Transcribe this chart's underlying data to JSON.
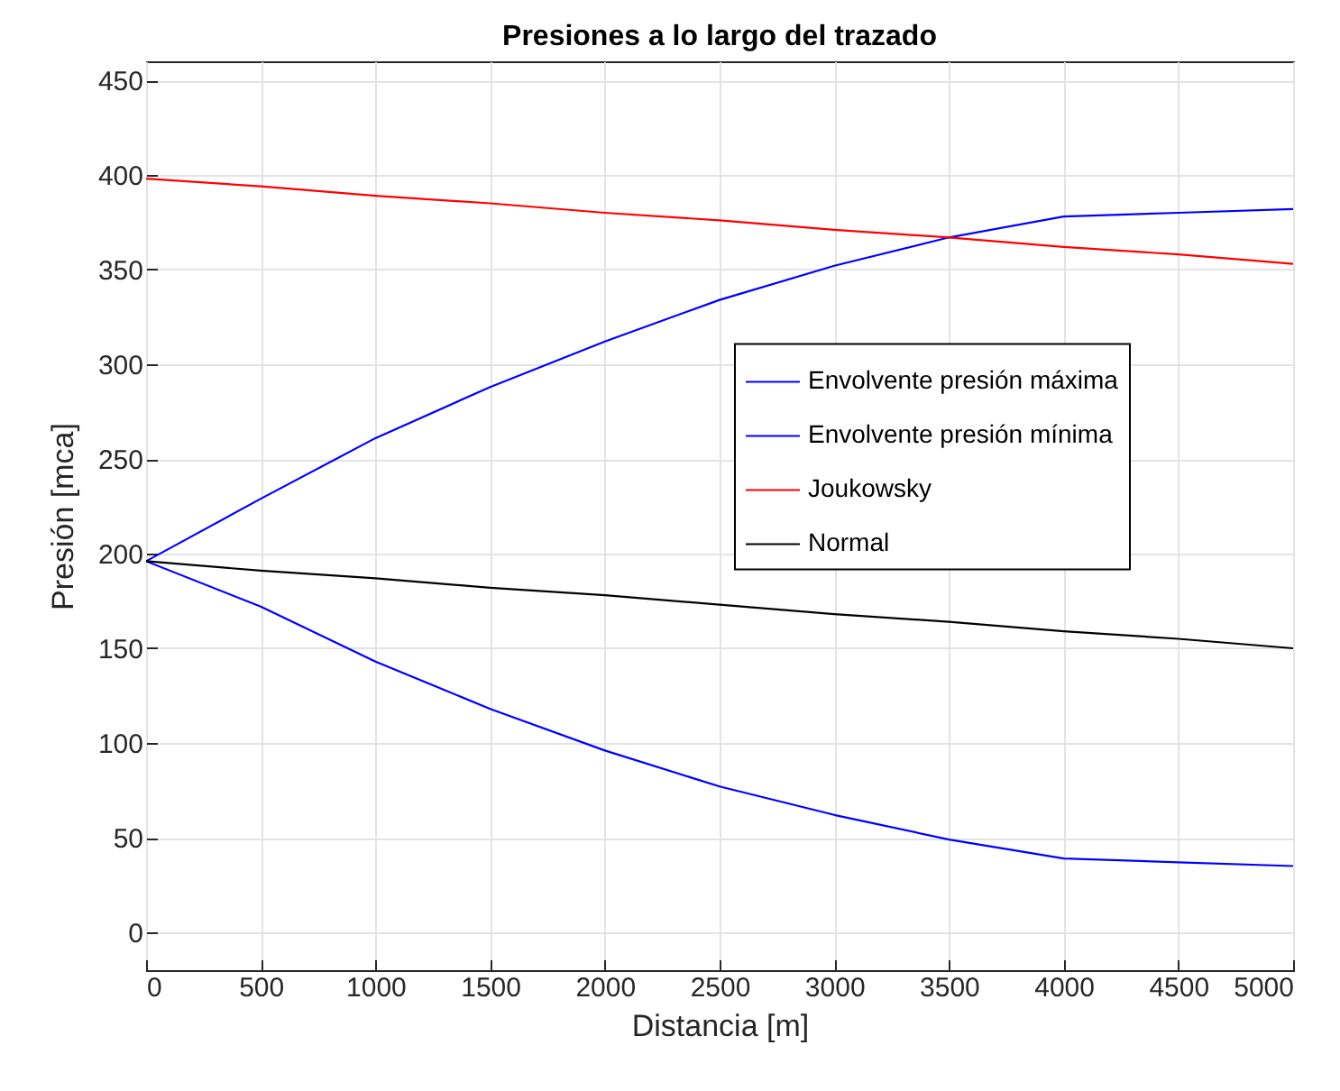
{
  "chart_data": {
    "type": "line",
    "title": "Presiones a lo largo del trazado",
    "xlabel": "Distancia [m]",
    "ylabel": "Presión [mca]",
    "x": [
      0,
      500,
      1000,
      1500,
      2000,
      2500,
      3000,
      3500,
      4000,
      4500,
      5000
    ],
    "series": [
      {
        "name": "Envolvente presión máxima",
        "color": "#0000ff",
        "values": [
          196,
          229,
          261,
          288,
          312,
          334,
          352,
          367,
          378,
          380,
          382
        ]
      },
      {
        "name": "Envolvente presión mínima",
        "color": "#0000ff",
        "values": [
          196,
          172,
          143,
          118,
          96,
          77,
          62,
          49,
          39,
          37,
          35
        ]
      },
      {
        "name": "Joukowsky",
        "color": "#ff0000",
        "values": [
          398,
          394,
          389,
          385,
          380,
          376,
          371,
          367,
          362,
          358,
          353
        ]
      },
      {
        "name": "Normal",
        "color": "#000000",
        "values": [
          196,
          191,
          187,
          182,
          178,
          173,
          168,
          164,
          159,
          155,
          150
        ]
      }
    ],
    "xlim": [
      0,
      5000
    ],
    "xticks": [
      0,
      500,
      1000,
      1500,
      2000,
      2500,
      3000,
      3500,
      4000,
      4500,
      5000
    ],
    "ylim": [
      -20,
      460
    ],
    "yticks": [
      0,
      50,
      100,
      150,
      200,
      250,
      300,
      350,
      400,
      450
    ],
    "grid": true,
    "legend": "right",
    "marker": "none",
    "line_style": "solid"
  }
}
